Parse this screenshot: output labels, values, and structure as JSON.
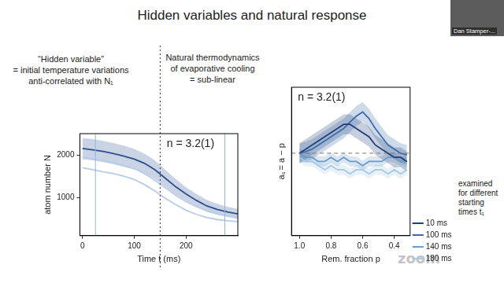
{
  "slide": {
    "title": "Hidden variables and natural response",
    "presenter": "Dan Stamper-...",
    "footer": "zoom"
  },
  "chart_data": [
    {
      "type": "line",
      "annotation": "n = 3.2(1)",
      "left_note": [
        "“Hidden variable”",
        "= initial temperature variations",
        "anti-correlated with N₁"
      ],
      "right_note": [
        "Natural thermodynamics",
        "of evaporative cooling",
        "= sub-linear"
      ],
      "x_label": "Time t (ms)",
      "y_label": "atom number N",
      "x": [
        0,
        20,
        40,
        60,
        80,
        100,
        120,
        140,
        160,
        180,
        200,
        220,
        240,
        260,
        280,
        300
      ],
      "series": [
        {
          "color": "#2b4f8f",
          "values": [
            2150,
            2120,
            2080,
            2030,
            1970,
            1900,
            1800,
            1650,
            1450,
            1250,
            1080,
            930,
            800,
            720,
            660,
            610
          ],
          "errors": [
            250,
            250,
            250,
            250,
            250,
            240,
            230,
            220,
            200,
            180,
            160,
            150,
            140,
            130,
            120,
            120
          ]
        },
        {
          "color": "#b7cce6",
          "values": [
            1950,
            1900,
            1870,
            1820,
            1750,
            1680,
            1560,
            1400,
            1230,
            1050,
            900,
            780,
            690,
            620,
            570,
            540
          ]
        },
        {
          "color": "#b7cce6",
          "values": [
            1700,
            1650,
            1600,
            1560,
            1500,
            1420,
            1300,
            1150,
            980,
            830,
            700,
            600,
            530,
            480,
            450,
            430
          ]
        }
      ],
      "xlim": [
        -5,
        300
      ],
      "xticks": [
        0,
        100,
        200
      ],
      "ylim": [
        100,
        2500
      ],
      "yticks": [
        1000,
        2000
      ],
      "grid": false,
      "divider_x": 150,
      "marker_x": [
        25,
        275
      ]
    },
    {
      "type": "line",
      "annotation": "n = 3.2(1)",
      "side_note": [
        "examined",
        "for different",
        "starting",
        "times t₁"
      ],
      "x_label": "Rem. fraction p",
      "y_label": "aₛ = a − p",
      "x": [
        1.0,
        0.96,
        0.92,
        0.88,
        0.84,
        0.8,
        0.76,
        0.72,
        0.68,
        0.64,
        0.6,
        0.56,
        0.52,
        0.48,
        0.44,
        0.4,
        0.36,
        0.32
      ],
      "series": [
        {
          "name": "10 ms",
          "color": "#1f3f7a",
          "values": [
            0,
            0.05,
            0.1,
            0.15,
            0.2,
            0.25,
            0.3,
            0.35,
            0.35,
            0.3,
            0.25,
            0.2,
            0.1,
            0.05,
            0.0,
            -0.05,
            -0.05,
            -0.1
          ],
          "errors": [
            0.12,
            0.12,
            0.12,
            0.12,
            0.12,
            0.12,
            0.12,
            0.12,
            0.12,
            0.12,
            0.12,
            0.12,
            0.12,
            0.12,
            0.12,
            0.12,
            0.12,
            0.12
          ]
        },
        {
          "name": "100 ms",
          "color": "#3d6cab",
          "values": [
            0,
            0.02,
            0.05,
            0.1,
            0.15,
            0.2,
            0.25,
            0.3,
            0.38,
            0.45,
            0.5,
            0.42,
            0.3,
            0.2,
            0.1,
            0.05,
            0.0,
            -0.02
          ],
          "errors": [
            0.12,
            0.12,
            0.12,
            0.12,
            0.12,
            0.12,
            0.12,
            0.12,
            0.12,
            0.12,
            0.12,
            0.12,
            0.12,
            0.12,
            0.12,
            0.12,
            0.12,
            0.12
          ]
        },
        {
          "name": "140 ms",
          "color": "#6b9cc9",
          "values": [
            0,
            -0.05,
            -0.05,
            -0.1,
            -0.1,
            -0.05,
            -0.1,
            -0.05,
            -0.1,
            -0.1,
            -0.15,
            -0.1,
            -0.1,
            -0.1,
            -0.05,
            -0.05,
            -0.1,
            -0.1
          ],
          "errors": [
            0.06,
            0.06,
            0.06,
            0.06,
            0.06,
            0.06,
            0.06,
            0.06,
            0.06,
            0.06,
            0.06,
            0.06,
            0.06,
            0.06,
            0.06,
            0.06,
            0.06,
            0.06
          ]
        },
        {
          "name": "180 ms",
          "color": "#a9c8e4",
          "values": [
            -0.05,
            -0.1,
            -0.1,
            -0.15,
            -0.2,
            -0.15,
            -0.2,
            -0.2,
            -0.25,
            -0.2,
            -0.2,
            -0.25,
            -0.2,
            -0.2,
            -0.25,
            -0.2,
            -0.25,
            -0.2
          ],
          "errors": [
            0.06,
            0.06,
            0.06,
            0.06,
            0.06,
            0.06,
            0.06,
            0.06,
            0.06,
            0.06,
            0.06,
            0.06,
            0.06,
            0.06,
            0.06,
            0.06,
            0.06,
            0.06
          ]
        }
      ],
      "xlim": [
        1.05,
        0.3
      ],
      "xticks": [
        {
          "value": 1,
          "label": "1.0"
        },
        0.8,
        0.6,
        0.4
      ],
      "ylim": [
        -1,
        0.8
      ],
      "tick_labels": "x",
      "grid": false,
      "legend": "lower right",
      "zero_line": 0
    }
  ]
}
